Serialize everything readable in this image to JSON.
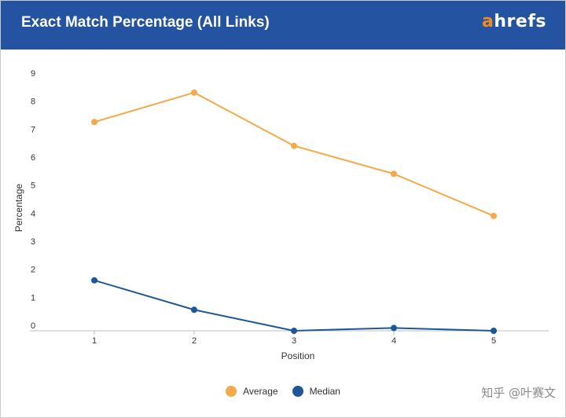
{
  "header": {
    "title": "Exact Match Percentage (All Links)",
    "logo_a": "a",
    "logo_rest": "hrefs",
    "background_color": "#2453a2",
    "logo_accent_color": "#f08a24"
  },
  "watermark": "知乎 @叶赛文",
  "chart_data": {
    "type": "line",
    "title": "Exact Match Percentage (All Links)",
    "xlabel": "Position",
    "ylabel": "Percentage",
    "categories": [
      "1",
      "2",
      "3",
      "4",
      "5"
    ],
    "x": [
      1,
      2,
      3,
      4,
      5
    ],
    "ylim": [
      0,
      9
    ],
    "y_ticks": [
      "0",
      "1",
      "2",
      "3",
      "4",
      "5",
      "6",
      "7",
      "8",
      "9"
    ],
    "grid": false,
    "legend_position": "bottom",
    "series": [
      {
        "name": "Average",
        "color": "#f5a94a",
        "values": [
          7.45,
          8.5,
          6.6,
          5.6,
          4.1
        ]
      },
      {
        "name": "Median",
        "color": "#1e5797",
        "values": [
          1.8,
          0.75,
          0.0,
          0.1,
          0.0
        ]
      }
    ]
  }
}
